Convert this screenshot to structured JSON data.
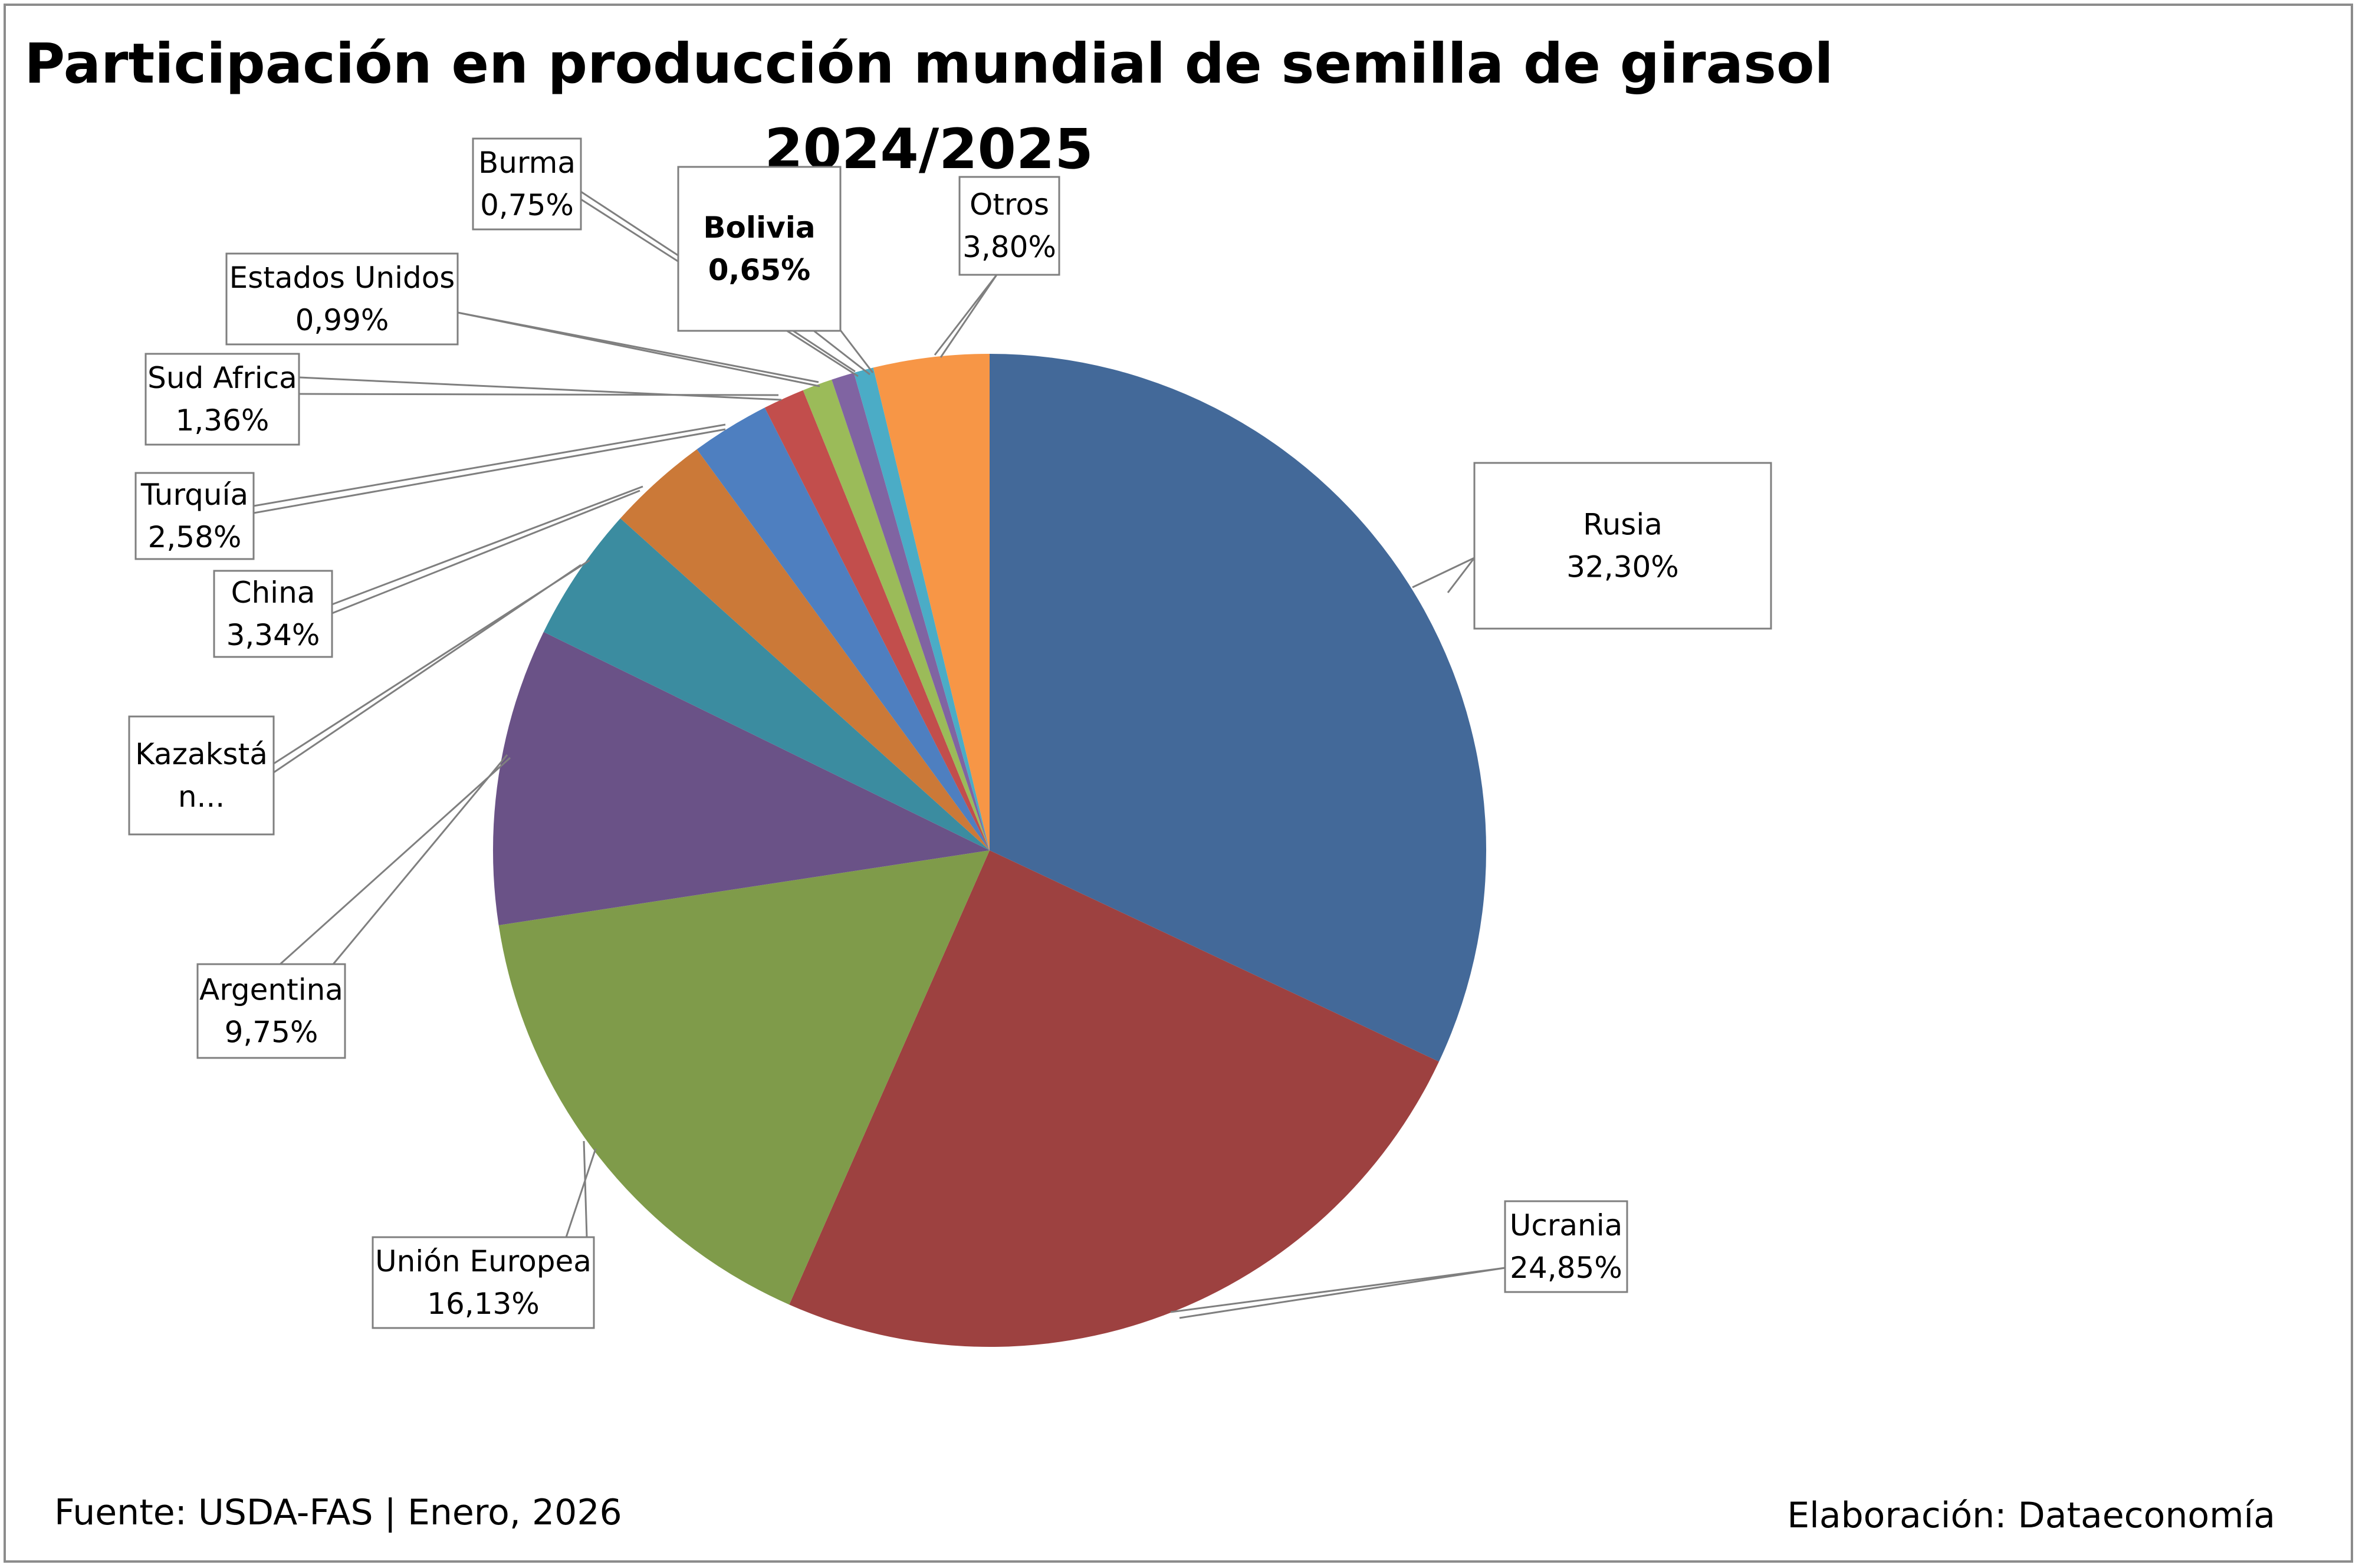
{
  "chart_data": {
    "type": "pie",
    "title": "Participación en producción mundial de semilla de girasol",
    "subtitle": "2024/2025",
    "unit": "%",
    "slices": [
      {
        "name": "Rusia",
        "value": 32.3,
        "value_label": "32,30%",
        "color": "#436999"
      },
      {
        "name": "Ucrania",
        "value": 24.85,
        "value_label": "24,85%",
        "color": "#9d4140"
      },
      {
        "name": "Unión Europea",
        "value": 16.13,
        "value_label": "16,13%",
        "color": "#7f9b4a"
      },
      {
        "name": "Argentina",
        "value": 9.75,
        "value_label": "9,75%",
        "color": "#6a5287"
      },
      {
        "name": "Kazakstá\nn...",
        "value": 4.45,
        "value_label": "",
        "color": "#3b8ca0"
      },
      {
        "name": "China",
        "value": 3.34,
        "value_label": "3,34%",
        "color": "#cb7938"
      },
      {
        "name": "Turquía",
        "value": 2.58,
        "value_label": "2,58%",
        "color": "#4e7fc0"
      },
      {
        "name": "Sud Africa",
        "value": 1.36,
        "value_label": "1,36%",
        "color": "#c24e4c"
      },
      {
        "name": "Estados Unidos",
        "value": 0.99,
        "value_label": "0,99%",
        "color": "#9bbb59"
      },
      {
        "name": "Burma",
        "value": 0.75,
        "value_label": "0,75%",
        "color": "#8064a2"
      },
      {
        "name": "Bolivia",
        "value": 0.65,
        "value_label": "0,65%",
        "color": "#4bacc6",
        "bold": true
      },
      {
        "name": "Otros",
        "value": 3.8,
        "value_label": "3,80%",
        "color": "#f79646"
      }
    ]
  },
  "footer": {
    "source": "Fuente: USDA-FAS | Enero, 2026",
    "credit": "Elaboración: Dataeconomía"
  }
}
